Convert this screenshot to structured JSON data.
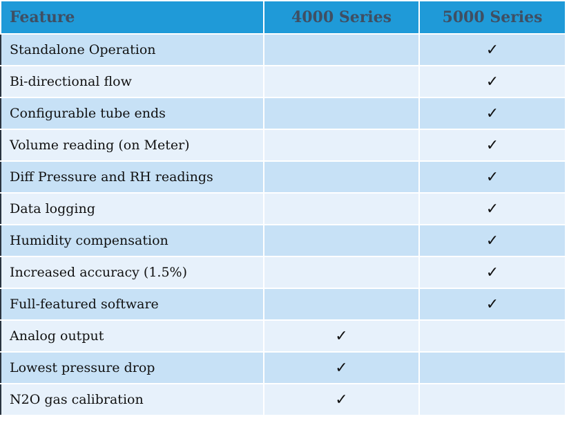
{
  "table": {
    "header": [
      "Feature",
      "4000 Series",
      "5000 Series"
    ],
    "rows": [
      [
        "Standalone Operation",
        null,
        "✓"
      ],
      [
        "Bi-directional flow",
        null,
        "✓"
      ],
      [
        "Configurable tube ends",
        null,
        "✓"
      ],
      [
        "Volume reading (on Meter)",
        null,
        "✓"
      ],
      [
        "Diff Pressure and RH readings",
        null,
        "✓"
      ],
      [
        "Data logging",
        null,
        "✓"
      ],
      [
        "Humidity compensation",
        null,
        "✓"
      ],
      [
        "Increased accuracy (1.5%)",
        null,
        "✓"
      ],
      [
        "Full-featured software",
        null,
        "✓"
      ],
      [
        "Analog output",
        "✓",
        null
      ],
      [
        "Lowest pressure drop",
        "✓",
        null
      ],
      [
        "N2O gas calibration",
        "✓",
        null
      ]
    ]
  }
}
